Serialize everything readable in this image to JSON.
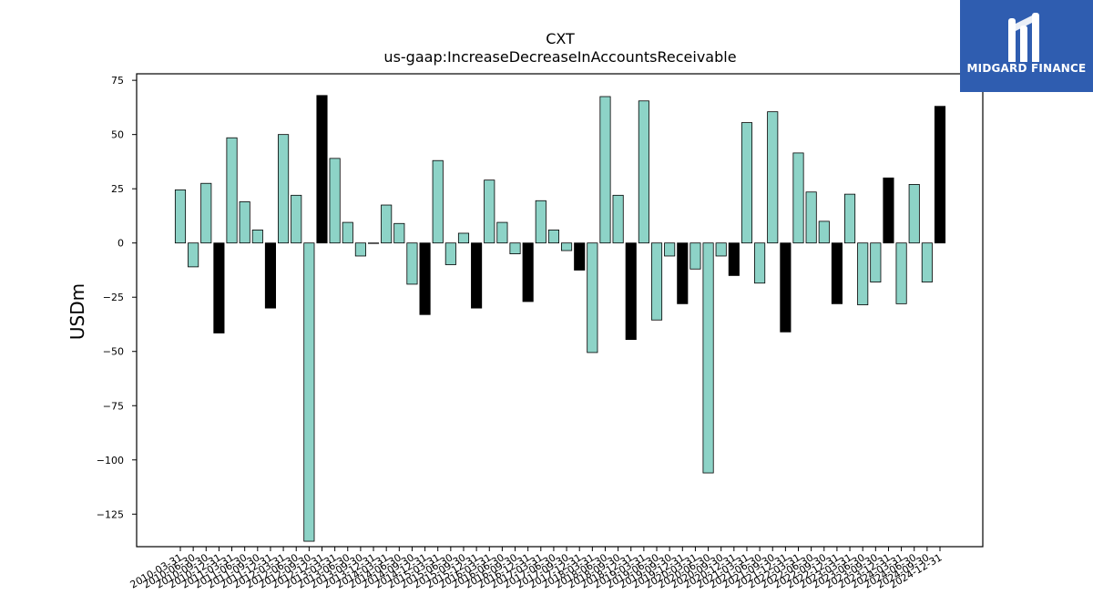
{
  "brand": {
    "name": "MIDGARD FINANCE",
    "icon": "midgard-logo-icon",
    "color": "#2f5db0"
  },
  "chart_data": {
    "type": "bar",
    "title": "CXT",
    "subtitle": "us-gaap:IncreaseDecreaseInAccountsReceivable",
    "xlabel": "",
    "ylabel": "USDm",
    "ylim": [
      -140,
      78
    ],
    "yticks": [
      75,
      50,
      25,
      0,
      -25,
      -50,
      -75,
      -100,
      -125
    ],
    "grid": false,
    "legend": "none",
    "colors": {
      "quarter": "#8dd3c7",
      "fiscal_year_end": "#000000"
    },
    "categories": [
      "2010-03-31",
      "2010-06-30",
      "2010-09-30",
      "2010-12-31",
      "2011-03-31",
      "2011-06-30",
      "2011-09-30",
      "2011-12-31",
      "2012-03-31",
      "2012-06-30",
      "2012-09-30",
      "2012-12-31",
      "2013-03-31",
      "2013-06-30",
      "2013-09-30",
      "2013-12-31",
      "2014-03-31",
      "2014-06-30",
      "2014-09-30",
      "2014-12-31",
      "2015-03-31",
      "2015-06-30",
      "2015-09-30",
      "2015-12-31",
      "2016-03-31",
      "2016-06-30",
      "2016-09-30",
      "2016-12-31",
      "2017-03-31",
      "2017-06-30",
      "2017-09-30",
      "2017-12-31",
      "2018-03-31",
      "2018-06-30",
      "2018-09-30",
      "2018-12-31",
      "2019-03-31",
      "2019-06-30",
      "2019-09-30",
      "2019-12-31",
      "2020-03-31",
      "2020-06-30",
      "2020-09-30",
      "2020-12-31",
      "2021-03-31",
      "2021-06-30",
      "2021-09-30",
      "2021-12-31",
      "2022-03-31",
      "2022-06-30",
      "2022-09-30",
      "2022-12-31",
      "2023-03-31",
      "2023-06-30",
      "2023-09-30",
      "2023-12-31",
      "2024-03-31",
      "2024-06-30",
      "2024-09-30",
      "2024-12-31"
    ],
    "values": [
      24.5,
      -11,
      27.5,
      -41.5,
      48.5,
      19,
      6,
      -30,
      50,
      22,
      -137.5,
      68,
      39,
      9.5,
      -6,
      0,
      17.5,
      9,
      -19,
      -33,
      38,
      -10,
      4.5,
      -30,
      29,
      9.5,
      -5,
      -27,
      19.5,
      6,
      -3.5,
      -12.5,
      -50.5,
      67.5,
      22,
      -44.5,
      65.5,
      -35.5,
      -6,
      -28,
      -12,
      -106,
      -6,
      -15,
      55.5,
      -18.5,
      60.5,
      -41,
      41.5,
      23.5,
      10,
      -28,
      22.5,
      -28.5,
      -18,
      30,
      -28,
      27,
      -18,
      63
    ],
    "fiscal_year_end": [
      false,
      false,
      false,
      true,
      false,
      false,
      false,
      true,
      false,
      false,
      false,
      true,
      false,
      false,
      false,
      true,
      false,
      false,
      false,
      true,
      false,
      false,
      false,
      true,
      false,
      false,
      false,
      true,
      false,
      false,
      false,
      true,
      false,
      false,
      false,
      true,
      false,
      false,
      false,
      true,
      false,
      false,
      false,
      true,
      false,
      false,
      false,
      true,
      false,
      false,
      false,
      true,
      false,
      false,
      false,
      true,
      false,
      false,
      false,
      true
    ]
  }
}
